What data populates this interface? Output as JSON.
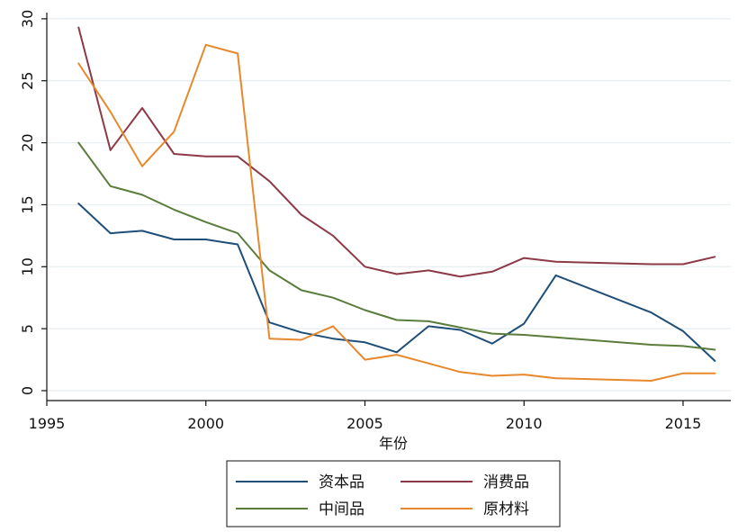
{
  "chart_data": {
    "type": "line",
    "xlabel": "年份",
    "ylabel": "",
    "xlim": [
      1995,
      2016.5
    ],
    "ylim": [
      -0.8,
      30.5
    ],
    "xticks": [
      1995,
      2000,
      2005,
      2010,
      2015
    ],
    "yticks": [
      0,
      5,
      10,
      15,
      20,
      25,
      30
    ],
    "grid": "horizontal",
    "legend_position": "bottom",
    "x": [
      1996,
      1997,
      1998,
      1999,
      2000,
      2001,
      2002,
      2003,
      2004,
      2005,
      2006,
      2007,
      2008,
      2009,
      2010,
      2011,
      2014,
      2015,
      2016
    ],
    "series": [
      {
        "name": "资本品",
        "color": "#1f4e79",
        "values": [
          15.1,
          12.7,
          12.9,
          12.2,
          12.2,
          11.8,
          5.5,
          4.7,
          4.2,
          3.9,
          3.1,
          5.2,
          4.9,
          3.8,
          5.4,
          9.3,
          6.3,
          4.8,
          2.4
        ]
      },
      {
        "name": "消费品",
        "color": "#8c3a47",
        "values": [
          29.3,
          19.4,
          22.8,
          19.1,
          18.9,
          18.9,
          16.9,
          14.2,
          12.5,
          10.0,
          9.4,
          9.7,
          9.2,
          9.6,
          10.7,
          10.4,
          10.2,
          10.2,
          10.8
        ]
      },
      {
        "name": "中间品",
        "color": "#5a7d3b",
        "values": [
          20.0,
          16.5,
          15.8,
          14.6,
          13.6,
          12.7,
          9.7,
          8.1,
          7.5,
          6.5,
          5.7,
          5.6,
          5.1,
          4.6,
          4.5,
          4.3,
          3.7,
          3.6,
          3.3
        ]
      },
      {
        "name": "原材料",
        "color": "#e8882d",
        "values": [
          26.4,
          22.5,
          18.1,
          20.9,
          27.9,
          27.2,
          4.2,
          4.1,
          5.2,
          2.5,
          2.9,
          2.2,
          1.5,
          1.2,
          1.3,
          1.0,
          0.8,
          1.4,
          1.4
        ]
      }
    ],
    "legend_order": [
      "资本品",
      "消费品",
      "中间品",
      "原材料"
    ]
  }
}
